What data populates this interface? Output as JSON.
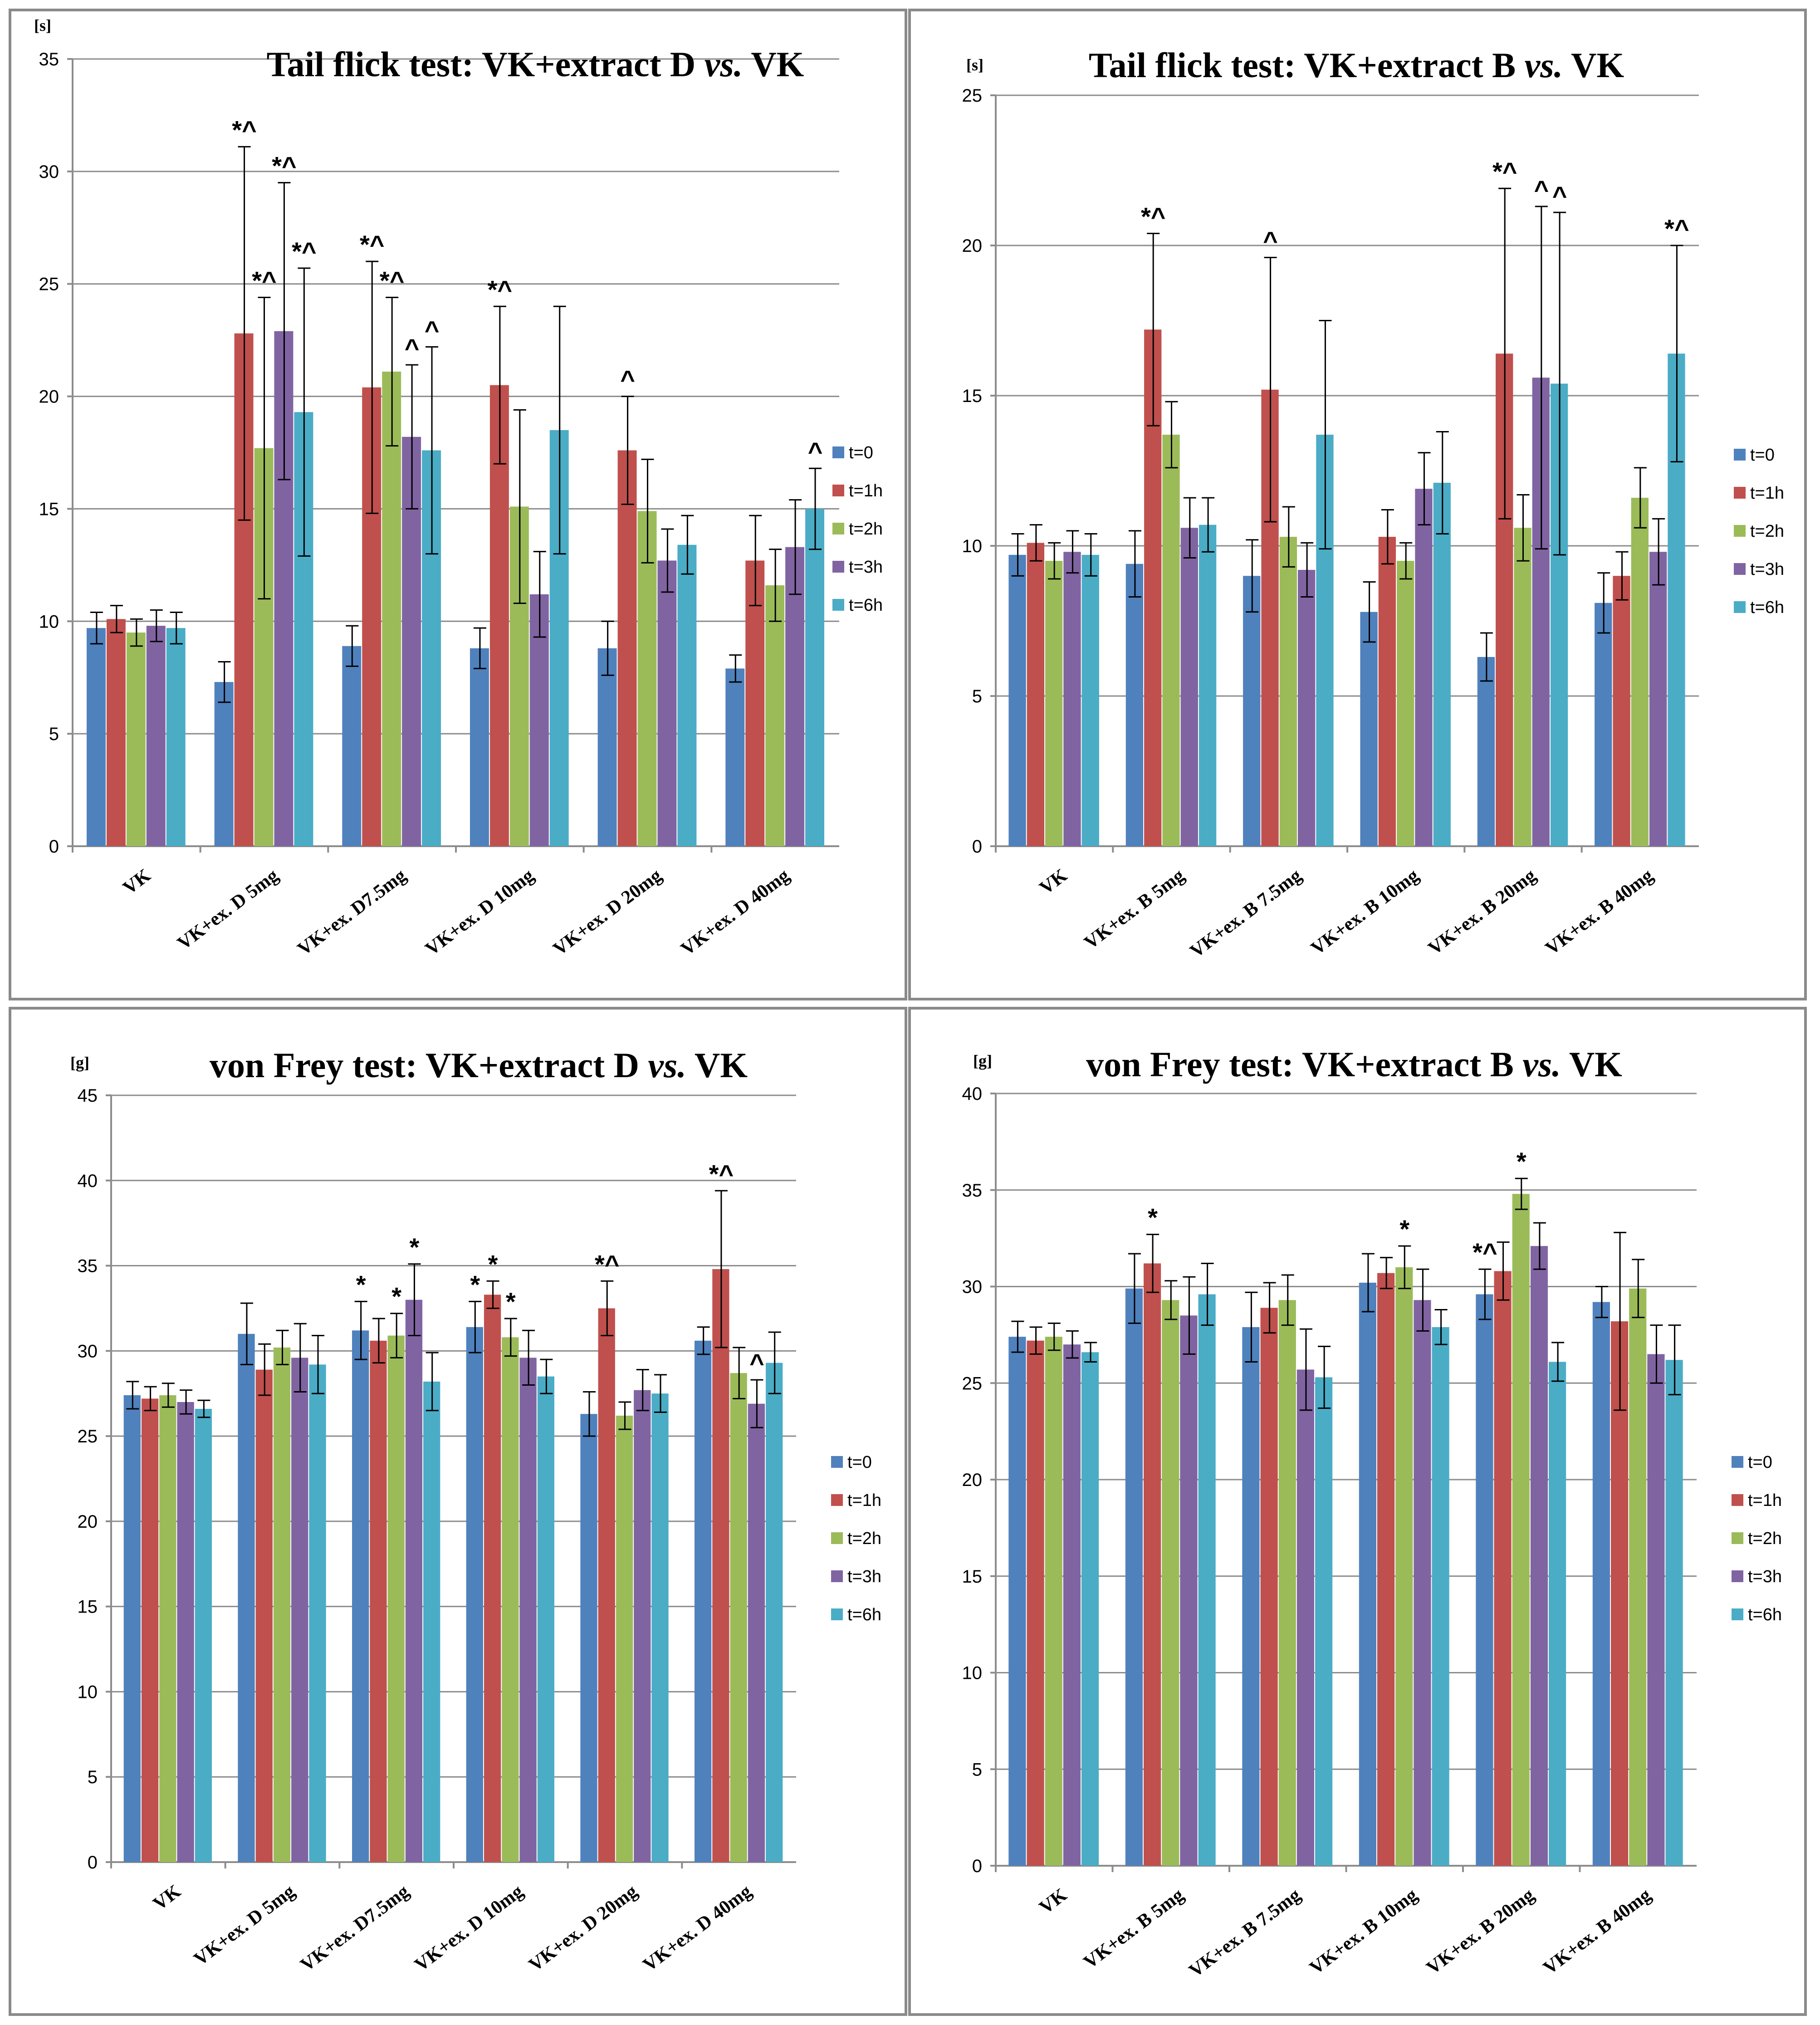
{
  "colors": {
    "t0": "#4f81bd",
    "t1h": "#c0504d",
    "t2h": "#9bbb59",
    "t3h": "#8064a2",
    "t6h": "#4bacc6"
  },
  "chart_data": [
    {
      "type": "bar",
      "title_parts": [
        "Tail flick test: VK+extract D ",
        "vs.",
        " VK"
      ],
      "unit": "[s]",
      "ylim": [
        0,
        35
      ],
      "yticks": [
        "0",
        "5",
        "10",
        "15",
        "20",
        "25",
        "30",
        "35"
      ],
      "categories": [
        "VK",
        "VK+ex. D 5mg",
        "VK+ex. D7.5mg",
        "VK+ex. D 10mg",
        "VK+ex. D 20mg",
        "VK+ex. D 40mg"
      ],
      "legend": [
        "t=0",
        "t=1h",
        "t=2h",
        "t=3h",
        "t=6h"
      ],
      "series": [
        {
          "name": "t=0",
          "values": [
            9.7,
            7.3,
            8.9,
            8.8,
            8.8,
            7.9
          ],
          "errors": [
            0.7,
            0.9,
            0.9,
            0.9,
            1.2,
            0.6
          ],
          "marks": [
            "",
            "",
            "",
            "",
            "",
            ""
          ]
        },
        {
          "name": "t=1h",
          "values": [
            10.1,
            22.8,
            20.4,
            20.5,
            17.6,
            12.7
          ],
          "errors": [
            0.6,
            8.3,
            5.6,
            3.5,
            2.4,
            2.0
          ],
          "marks": [
            "",
            "*^",
            "*^",
            "*^",
            "^",
            ""
          ]
        },
        {
          "name": "t=2h",
          "values": [
            9.5,
            17.7,
            21.1,
            15.1,
            14.9,
            11.6
          ],
          "errors": [
            0.6,
            6.7,
            3.3,
            4.3,
            2.3,
            1.6
          ],
          "marks": [
            "",
            "*^",
            "*^",
            "",
            "",
            ""
          ]
        },
        {
          "name": "t=3h",
          "values": [
            9.8,
            22.9,
            18.2,
            11.2,
            12.7,
            13.3
          ],
          "errors": [
            0.7,
            6.6,
            3.2,
            1.9,
            1.4,
            2.1
          ],
          "marks": [
            "",
            "*^",
            "^",
            "",
            "",
            ""
          ]
        },
        {
          "name": "t=6h",
          "values": [
            9.7,
            19.3,
            17.6,
            18.5,
            13.4,
            15.0
          ],
          "errors": [
            0.7,
            6.4,
            4.6,
            5.5,
            1.3,
            1.8
          ],
          "marks": [
            "",
            "*^",
            "^",
            "",
            "",
            "^"
          ]
        }
      ]
    },
    {
      "type": "bar",
      "title_parts": [
        "Tail flick test: VK+extract B ",
        "vs.",
        " VK"
      ],
      "unit": "[s]",
      "ylim": [
        0,
        25
      ],
      "yticks": [
        "0",
        "5",
        "10",
        "15",
        "20",
        "25"
      ],
      "categories": [
        "VK",
        "VK+ex. B 5mg",
        "VK+ex. B 7.5mg",
        "VK+ex. B 10mg",
        "VK+ex. B 20mg",
        "VK+ex. B 40mg"
      ],
      "legend": [
        "t=0",
        "t=1h",
        "t=2h",
        "t=3h",
        "t=6h"
      ],
      "series": [
        {
          "name": "t=0",
          "values": [
            9.7,
            9.4,
            9.0,
            7.8,
            6.3,
            8.1
          ],
          "errors": [
            0.7,
            1.1,
            1.2,
            1.0,
            0.8,
            1.0
          ],
          "marks": [
            "",
            "",
            "",
            "",
            "",
            ""
          ]
        },
        {
          "name": "t=1h",
          "values": [
            10.1,
            17.2,
            15.2,
            10.3,
            16.4,
            9.0
          ],
          "errors": [
            0.6,
            3.2,
            4.4,
            0.9,
            5.5,
            0.8
          ],
          "marks": [
            "",
            "*^",
            "^",
            "",
            "*^",
            ""
          ]
        },
        {
          "name": "t=2h",
          "values": [
            9.5,
            13.7,
            10.3,
            9.5,
            10.6,
            11.6
          ],
          "errors": [
            0.6,
            1.1,
            1.0,
            0.6,
            1.1,
            1.0
          ],
          "marks": [
            "",
            "",
            "",
            "",
            "",
            ""
          ]
        },
        {
          "name": "t=3h",
          "values": [
            9.8,
            10.6,
            9.2,
            11.9,
            15.6,
            9.8
          ],
          "errors": [
            0.7,
            1.0,
            0.9,
            1.2,
            5.7,
            1.1
          ],
          "marks": [
            "",
            "",
            "",
            "",
            "^",
            ""
          ]
        },
        {
          "name": "t=6h",
          "values": [
            9.7,
            10.7,
            13.7,
            12.1,
            15.4,
            16.4
          ],
          "errors": [
            0.7,
            0.9,
            3.8,
            1.7,
            5.7,
            3.6
          ],
          "marks": [
            "",
            "",
            "",
            "",
            "^",
            "*^"
          ]
        }
      ]
    },
    {
      "type": "bar",
      "title_parts": [
        "von Frey test: VK+extract D ",
        "vs.",
        " VK"
      ],
      "unit": "[g]",
      "ylim": [
        0,
        45
      ],
      "yticks": [
        "0",
        "5",
        "10",
        "15",
        "20",
        "25",
        "30",
        "35",
        "40",
        "45"
      ],
      "categories": [
        "VK",
        "VK+ex. D 5mg",
        "VK+ex. D7.5mg",
        "VK+ex. D 10mg",
        "VK+ex. D 20mg",
        "VK+ex. D 40mg"
      ],
      "legend": [
        "t=0",
        "t=1h",
        "t=2h",
        "t=3h",
        "t=6h"
      ],
      "series": [
        {
          "name": "t=0",
          "values": [
            27.4,
            31.0,
            31.2,
            31.4,
            26.3,
            30.6
          ],
          "errors": [
            0.8,
            1.8,
            1.7,
            1.5,
            1.3,
            0.8
          ],
          "marks": [
            "",
            "",
            "*",
            "*",
            "",
            ""
          ]
        },
        {
          "name": "t=1h",
          "values": [
            27.2,
            28.9,
            30.6,
            33.3,
            32.5,
            34.8
          ],
          "errors": [
            0.7,
            1.5,
            1.3,
            0.8,
            1.6,
            4.6
          ],
          "marks": [
            "",
            "",
            "",
            "*",
            "*^",
            "*^"
          ]
        },
        {
          "name": "t=2h",
          "values": [
            27.4,
            30.2,
            30.9,
            30.8,
            26.2,
            28.7
          ],
          "errors": [
            0.7,
            1.0,
            1.3,
            1.1,
            0.8,
            1.5
          ],
          "marks": [
            "",
            "",
            "*",
            "*",
            "",
            ""
          ]
        },
        {
          "name": "t=3h",
          "values": [
            27.0,
            29.6,
            33.0,
            29.6,
            27.7,
            26.9
          ],
          "errors": [
            0.7,
            2.0,
            2.1,
            1.6,
            1.2,
            1.4
          ],
          "marks": [
            "",
            "",
            "*",
            "",
            "",
            "^"
          ]
        },
        {
          "name": "t=6h",
          "values": [
            26.6,
            29.2,
            28.2,
            28.5,
            27.5,
            29.3
          ],
          "errors": [
            0.5,
            1.7,
            1.7,
            1.0,
            1.1,
            1.8
          ],
          "marks": [
            "",
            "",
            "",
            "",
            "",
            ""
          ]
        }
      ]
    },
    {
      "type": "bar",
      "title_parts": [
        "von Frey test: VK+extract B ",
        "vs.",
        " VK"
      ],
      "unit": "[g]",
      "ylim": [
        0,
        40
      ],
      "yticks": [
        "0",
        "5",
        "10",
        "15",
        "20",
        "25",
        "30",
        "35",
        "40"
      ],
      "categories": [
        "VK",
        "VK+ex. B 5mg",
        "VK+ex. B 7.5mg",
        "VK+ex. B 10mg",
        "VK+ex. B 20mg",
        "VK+ex. B 40mg"
      ],
      "legend": [
        "t=0",
        "t=1h",
        "t=2h",
        "t=3h",
        "t=6h"
      ],
      "series": [
        {
          "name": "t=0",
          "values": [
            27.4,
            29.9,
            27.9,
            30.2,
            29.6,
            29.2
          ],
          "errors": [
            0.8,
            1.8,
            1.8,
            1.5,
            1.3,
            0.8
          ],
          "marks": [
            "",
            "",
            "",
            "",
            "*^",
            ""
          ]
        },
        {
          "name": "t=1h",
          "values": [
            27.2,
            31.2,
            28.9,
            30.7,
            30.8,
            28.2
          ],
          "errors": [
            0.7,
            1.5,
            1.3,
            0.8,
            1.5,
            4.6
          ],
          "marks": [
            "",
            "*",
            "",
            "",
            "",
            ""
          ]
        },
        {
          "name": "t=2h",
          "values": [
            27.4,
            29.3,
            29.3,
            31.0,
            34.8,
            29.9
          ],
          "errors": [
            0.7,
            1.0,
            1.3,
            1.1,
            0.8,
            1.5
          ],
          "marks": [
            "",
            "",
            "",
            "*",
            "*",
            ""
          ]
        },
        {
          "name": "t=3h",
          "values": [
            27.0,
            28.5,
            25.7,
            29.3,
            32.1,
            26.5
          ],
          "errors": [
            0.7,
            2.0,
            2.1,
            1.6,
            1.2,
            1.5
          ],
          "marks": [
            "",
            "",
            "",
            "",
            "",
            ""
          ]
        },
        {
          "name": "t=6h",
          "values": [
            26.6,
            29.6,
            25.3,
            27.9,
            26.1,
            26.2
          ],
          "errors": [
            0.5,
            1.6,
            1.6,
            0.9,
            1.0,
            1.8
          ],
          "marks": [
            "",
            "",
            "",
            "",
            "",
            ""
          ]
        }
      ]
    }
  ]
}
